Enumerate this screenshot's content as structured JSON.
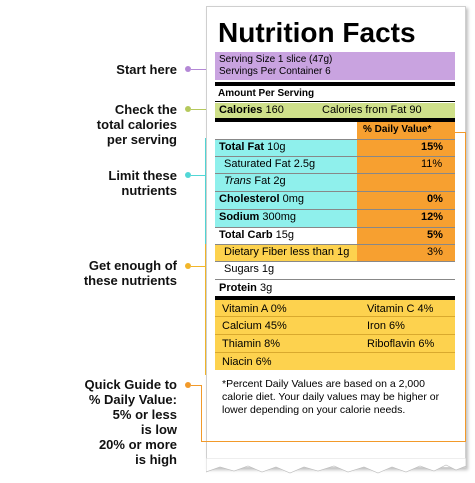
{
  "annotations": {
    "start": "Start here",
    "calories": [
      "Check the",
      "total calories",
      "per serving"
    ],
    "limit": [
      "Limit these",
      "nutrients"
    ],
    "enough": [
      "Get enough of",
      "these nutrients"
    ],
    "guide": [
      "Quick Guide to",
      "% Daily Value:",
      "5% or less",
      "is low",
      "20% or more",
      "is high"
    ]
  },
  "label": {
    "title": "Nutrition Facts",
    "serving_size": "Serving Size 1 slice (47g)",
    "servings_per_container": "Servings Per Container 6",
    "amount_per_serving": "Amount Per Serving",
    "calories_label": "Calories",
    "calories_value": "160",
    "calories_fat": "Calories from Fat 90",
    "dv_header": "% Daily Value*",
    "nutrients": [
      {
        "name": "Total Fat",
        "amount": "10g",
        "dv": "15%"
      },
      {
        "name": "Saturated Fat",
        "amount": "2.5g",
        "dv": "11%"
      },
      {
        "name": "Trans",
        "amount": "Fat 2g",
        "dv": ""
      },
      {
        "name": "Cholesterol",
        "amount": "0mg",
        "dv": "0%"
      },
      {
        "name": "Sodium",
        "amount": "300mg",
        "dv": "12%"
      },
      {
        "name": "Total Carb",
        "amount": "15g",
        "dv": "5%"
      },
      {
        "name": "Dietary Fiber less than 1g",
        "amount": "",
        "dv": "3%"
      },
      {
        "name": "Sugars",
        "amount": "1g",
        "dv": ""
      },
      {
        "name": "Protein",
        "amount": "3g",
        "dv": ""
      }
    ],
    "vitamins": [
      {
        "left": "Vitamin A 0%",
        "right": "Vitamin C 4%"
      },
      {
        "left": "Calcium 45%",
        "right": "Iron 6%"
      },
      {
        "left": "Thiamin 8%",
        "right": "Riboflavin 6%"
      },
      {
        "left": "Niacin 6%",
        "right": ""
      }
    ],
    "footnote": "*Percent Daily Values are based on a 2,000 calorie diet. Your daily values may be higher or lower depending on your calorie needs."
  },
  "colors": {
    "purple": "#c9a3e0",
    "green": "#cfe08a",
    "cyan": "#8ff0ec",
    "orange": "#f7a030",
    "yellow": "#fdd24e"
  }
}
